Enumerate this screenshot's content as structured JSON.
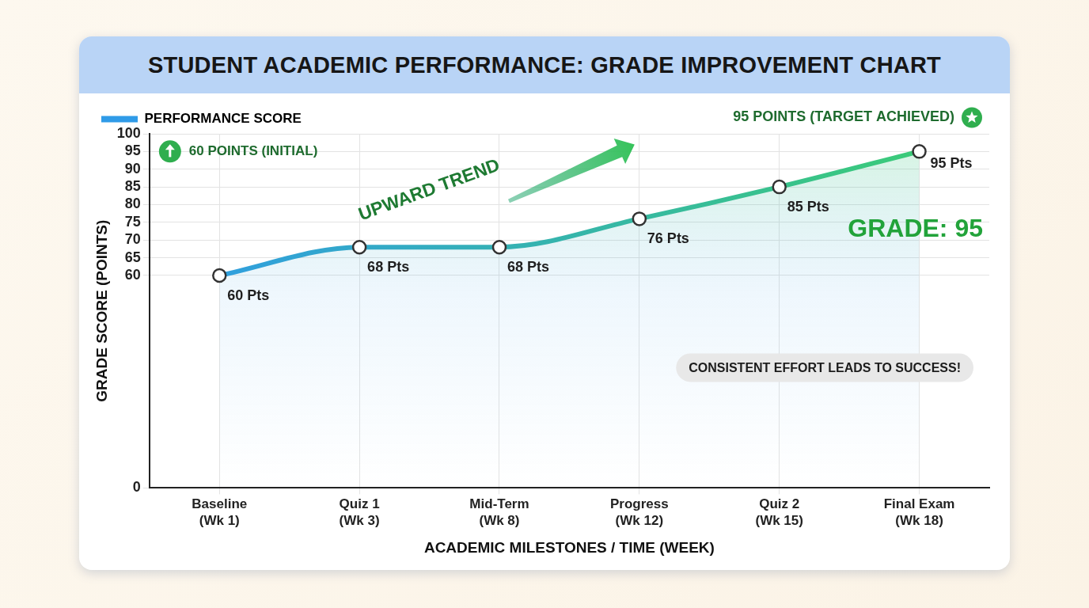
{
  "chart_data": {
    "type": "line",
    "title": "STUDENT ACADEMIC PERFORMANCE: GRADE IMPROVEMENT CHART",
    "x_label": "ACADEMIC MILESTONES / TIME (WEEK)",
    "y_label": "GRADE SCORE (POINTS)",
    "categories": [
      "Baseline (Wk 1)",
      "Quiz 1 (Wk 3)",
      "Mid-Term (Wk 8)",
      "Progress (Wk 12)",
      "Quiz 2 (Wk 15)",
      "Final Exam (Wk 18)"
    ],
    "series": [
      {
        "name": "PERFORMANCE SCORE",
        "color": "#2f9be8",
        "marker": "circle",
        "values": [
          60,
          68,
          68,
          76,
          85,
          95
        ],
        "value_labels": [
          "60 Pts",
          "68 Pts",
          "68 Pts",
          "76 Pts",
          "85 Pts",
          "95 Pts"
        ]
      }
    ],
    "ylim": [
      0,
      100
    ],
    "yticks": [
      0,
      60,
      65,
      70,
      75,
      80,
      85,
      90,
      95,
      100
    ],
    "grid": true,
    "legend": "upper left",
    "data_labels": true,
    "annotations": [
      "60 POINTS (INITIAL)",
      "95 POINTS (TARGET ACHIEVED)",
      "UPWARD TREND",
      "GRADE: 95",
      "CONSISTENT EFFORT LEADS TO SUCCESS!"
    ]
  }
}
